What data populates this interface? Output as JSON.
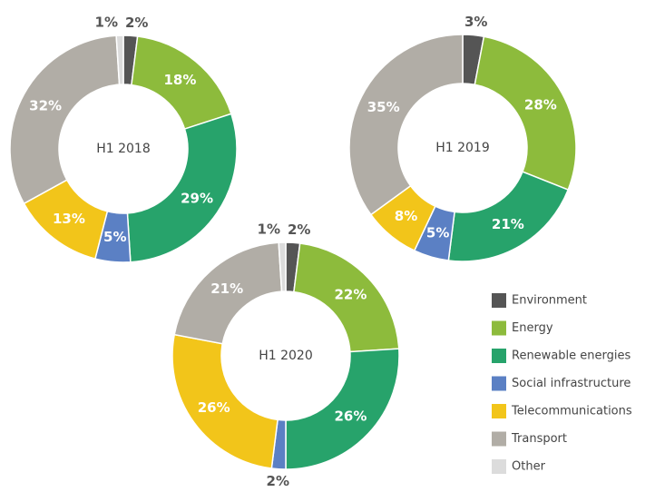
{
  "chart_data": [
    {
      "type": "donut",
      "title": "H1 2018",
      "categories": [
        "Environment",
        "Energy",
        "Renewable energies",
        "Social infrastructure",
        "Telecommunications",
        "Transport",
        "Other"
      ],
      "values": [
        2,
        18,
        29,
        5,
        13,
        32,
        1
      ],
      "value_labels": [
        "2%",
        "18%",
        "29%",
        "5%",
        "13%",
        "32%",
        "1%"
      ]
    },
    {
      "type": "donut",
      "title": "H1 2019",
      "categories": [
        "Environment",
        "Energy",
        "Renewable energies",
        "Social infrastructure",
        "Telecommunications",
        "Transport"
      ],
      "values": [
        3,
        28,
        21,
        5,
        8,
        35
      ],
      "value_labels": [
        "3%",
        "28%",
        "21%",
        "5%",
        "8%",
        "35%"
      ]
    },
    {
      "type": "donut",
      "title": "H1 2020",
      "categories": [
        "Environment",
        "Energy",
        "Renewable energies",
        "Social infrastructure",
        "Telecommunications",
        "Transport",
        "Other"
      ],
      "values": [
        2,
        22,
        26,
        2,
        26,
        21,
        1
      ],
      "value_labels": [
        "2%",
        "22%",
        "26%",
        "2%",
        "26%",
        "21%",
        "1%"
      ]
    }
  ],
  "legend": {
    "names": [
      "Environment",
      "Energy",
      "Renewable energies",
      "Social infrastructure",
      "Telecommunications",
      "Transport",
      "Other"
    ],
    "colors": [
      "#555555",
      "#8dbb3c",
      "#27a36b",
      "#5b80c4",
      "#f2c51a",
      "#b1ada6",
      "#dcdcdc"
    ]
  }
}
